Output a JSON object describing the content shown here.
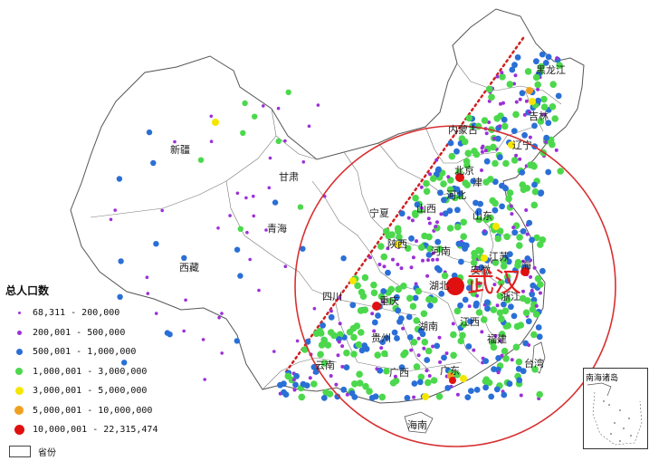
{
  "colors": {
    "purple": "#9b30d8",
    "blue": "#2a6fd6",
    "green": "#4cd84c",
    "yellow": "#f5e600",
    "orange": "#f0a020",
    "red": "#e01010",
    "circle": "#d83030",
    "hu_line": "#d02020",
    "border": "#555555",
    "land": "#ffffff"
  },
  "provinces": {
    "heilongjiang": "黑龙江",
    "jilin": "吉林",
    "liaoning": "辽宁",
    "neimenggu": "内蒙古",
    "xinjiang": "新疆",
    "gansu": "甘肃",
    "ningxia": "宁夏",
    "qinghai": "青海",
    "xizang": "西藏",
    "beijing": "北京",
    "tianjin": "津",
    "hebei": "河北",
    "shanxi": "山西",
    "shandong": "山东",
    "henan": "河南",
    "shaanxi": "陕西",
    "jiangsu": "江苏",
    "anhui": "安徽",
    "hubei": "湖北",
    "zhejiang": "浙江",
    "sichuan": "四川",
    "chongqing": "重庆",
    "hunan": "湖南",
    "jiangxi": "江西",
    "guizhou": "贵州",
    "fujian": "福建",
    "yunnan": "云南",
    "guangxi": "广西",
    "guangdong": "广东",
    "taiwan": "台湾",
    "hainan": "海南",
    "shanghai": "海"
  },
  "wuhan_label": "武汉",
  "legend": {
    "title": "总人口数",
    "items": [
      {
        "label": "68,311 - 200,000",
        "color": "#9b30d8",
        "size": 3
      },
      {
        "label": "200,001 - 500,000",
        "color": "#9b30d8",
        "size": 5
      },
      {
        "label": "500,001 - 1,000,000",
        "color": "#2a6fd6",
        "size": 7
      },
      {
        "label": "1,000,001 - 3,000,000",
        "color": "#4cd84c",
        "size": 8
      },
      {
        "label": "3,000,001 - 5,000,000",
        "color": "#f5e600",
        "size": 9
      },
      {
        "label": "5,000,001 - 10,000,000",
        "color": "#f0a020",
        "size": 10
      },
      {
        "label": "10,000,001 - 22,315,474",
        "color": "#e01010",
        "size": 11
      }
    ],
    "boundary_label": "省份"
  },
  "inset_title": "南海诸岛"
}
